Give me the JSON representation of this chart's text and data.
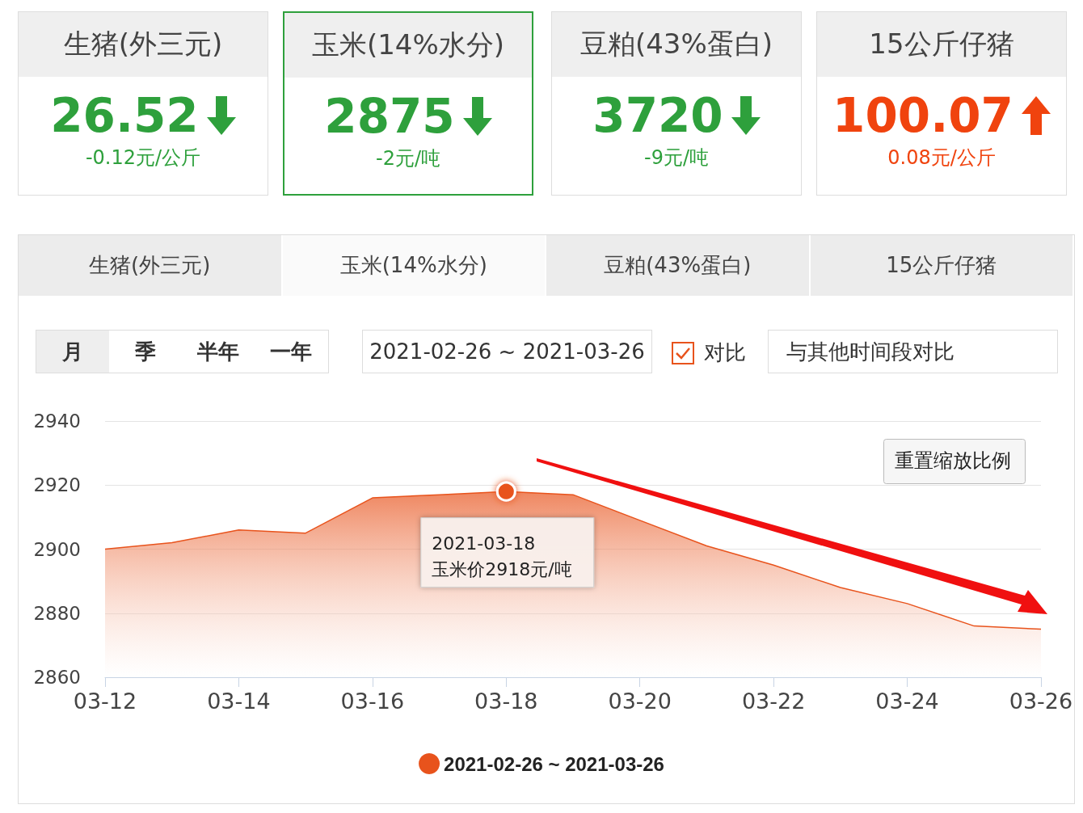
{
  "chart_data": [
    {
      "type": "other",
      "categories": [
        "生猪(外三元)",
        "玉米(14%水分)",
        "豆粕(43%蛋白)",
        "15公斤仔猪"
      ],
      "data_labels": true,
      "series": [
        {
          "values": [
            26.52,
            2875,
            3720,
            100.07
          ]
        },
        {
          "values": [
            -0.12,
            -2,
            -9,
            0.08
          ],
          "value_labels": [
            "-0.12元/公斤",
            "-2元/吨",
            "-9元/吨",
            "0.08元/公斤"
          ]
        }
      ],
      "annotations": [
        "月",
        "季",
        "半年",
        "一年",
        "2021-02-26 ~ 2021-03-26",
        "对比",
        "与其他时间段对比"
      ]
    },
    {
      "type": "area",
      "categories": [
        "03-12",
        null,
        "03-14",
        null,
        "03-16",
        null,
        "03-18",
        null,
        "03-20",
        null,
        "03-22",
        null,
        "03-24",
        null,
        "03-26"
      ],
      "series": [
        {
          "name": "2021-02-26 ~ 2021-03-26",
          "color": "#e8531c",
          "values": [
            2900,
            2902,
            2906,
            2905,
            2916,
            2917,
            2918,
            2917,
            2909,
            2901,
            2895,
            2888,
            2883,
            2876,
            2875
          ]
        }
      ],
      "ylim": [
        2860,
        2940
      ],
      "yticks": [
        2860,
        2880,
        2900,
        2920,
        2940
      ],
      "grid": "y",
      "legend": "bottom",
      "marker": "none",
      "annotations": [
        {
          "text": "2021-03-18\n玉米价2918元/吨",
          "x": "03-18",
          "y": 2918
        },
        "重置缩放比例"
      ]
    }
  ]
}
